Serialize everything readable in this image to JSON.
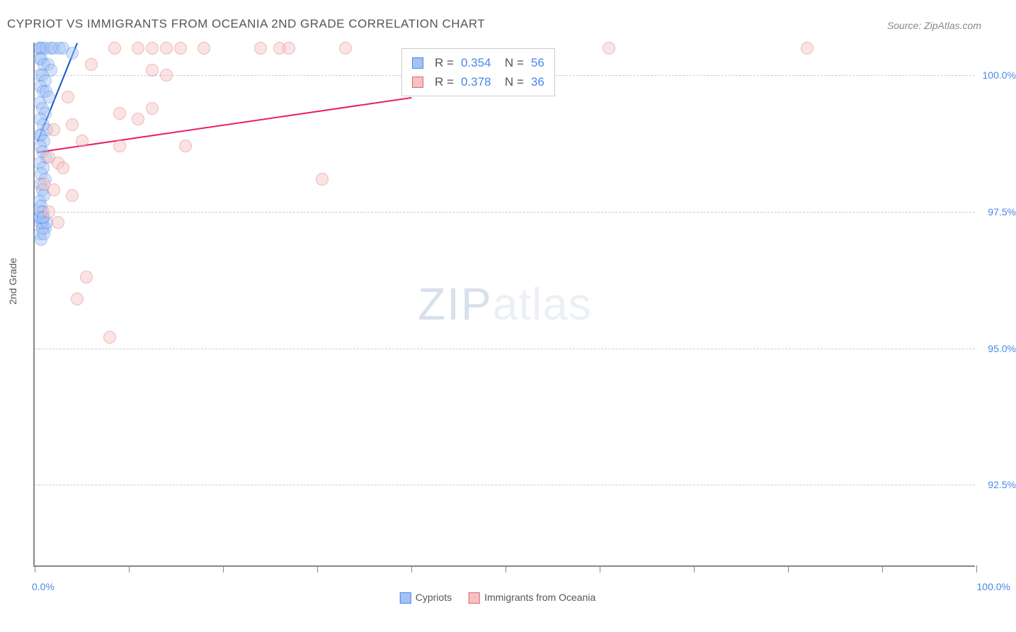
{
  "title": "CYPRIOT VS IMMIGRANTS FROM OCEANIA 2ND GRADE CORRELATION CHART",
  "source_label": "Source: ZipAtlas.com",
  "ylabel": "2nd Grade",
  "watermark": {
    "part1": "ZIP",
    "part2": "atlas"
  },
  "chart": {
    "type": "scatter",
    "background_color": "#ffffff",
    "grid_color": "#cccccc",
    "axis_color": "#888888",
    "xlim": [
      0,
      100
    ],
    "ylim": [
      91.0,
      100.6
    ],
    "xtick_positions": [
      0,
      10,
      20,
      30,
      40,
      50,
      60,
      70,
      80,
      90,
      100
    ],
    "xtick_labels_shown": {
      "0": "0.0%",
      "100": "100.0%"
    },
    "ytick_positions": [
      92.5,
      95.0,
      97.5,
      100.0
    ],
    "ytick_labels": [
      "92.5%",
      "95.0%",
      "97.5%",
      "100.0%"
    ],
    "title_fontsize": 17,
    "label_fontsize": 14,
    "tick_label_color": "#4a86e8",
    "point_radius": 9,
    "point_opacity": 0.45,
    "series": [
      {
        "name": "Cypriots",
        "fill_color": "#a4c2f4",
        "stroke_color": "#4a86e8",
        "R": "0.354",
        "N": "56",
        "trendline": {
          "x1": 0.3,
          "y1": 98.8,
          "x2": 4.5,
          "y2": 100.6,
          "color": "#1155cc",
          "width": 2
        },
        "points": [
          [
            0.5,
            100.5
          ],
          [
            0.6,
            100.5
          ],
          [
            0.8,
            100.5
          ],
          [
            1.2,
            100.5
          ],
          [
            1.7,
            100.5
          ],
          [
            2.0,
            100.5
          ],
          [
            2.6,
            100.5
          ],
          [
            3.0,
            100.5
          ],
          [
            4.0,
            100.4
          ],
          [
            0.5,
            100.3
          ],
          [
            0.7,
            100.3
          ],
          [
            1.0,
            100.2
          ],
          [
            1.4,
            100.2
          ],
          [
            1.7,
            100.1
          ],
          [
            0.5,
            100.0
          ],
          [
            0.8,
            100.0
          ],
          [
            1.1,
            99.9
          ],
          [
            0.6,
            99.8
          ],
          [
            0.9,
            99.7
          ],
          [
            1.2,
            99.7
          ],
          [
            1.5,
            99.6
          ],
          [
            0.5,
            99.5
          ],
          [
            0.8,
            99.4
          ],
          [
            1.1,
            99.3
          ],
          [
            0.6,
            99.2
          ],
          [
            0.9,
            99.1
          ],
          [
            1.3,
            99.0
          ],
          [
            0.5,
            98.9
          ],
          [
            0.7,
            98.9
          ],
          [
            1.0,
            98.8
          ],
          [
            0.6,
            98.7
          ],
          [
            0.8,
            98.6
          ],
          [
            1.2,
            98.5
          ],
          [
            0.5,
            98.4
          ],
          [
            0.9,
            98.3
          ],
          [
            0.7,
            98.2
          ],
          [
            1.1,
            98.1
          ],
          [
            0.6,
            98.0
          ],
          [
            0.8,
            97.9
          ],
          [
            1.0,
            97.8
          ],
          [
            0.5,
            97.7
          ],
          [
            0.7,
            97.6
          ],
          [
            0.9,
            97.5
          ],
          [
            0.6,
            97.4
          ],
          [
            0.8,
            97.3
          ],
          [
            1.1,
            97.2
          ],
          [
            0.5,
            97.1
          ],
          [
            0.7,
            97.0
          ],
          [
            0.9,
            97.4
          ],
          [
            0.6,
            97.3
          ],
          [
            0.8,
            97.2
          ],
          [
            1.0,
            97.1
          ],
          [
            0.5,
            97.4
          ],
          [
            1.3,
            97.3
          ],
          [
            0.7,
            97.5
          ],
          [
            0.9,
            97.4
          ]
        ]
      },
      {
        "name": "Immigrants from Oceania",
        "fill_color": "#f4c2c2",
        "stroke_color": "#e06666",
        "R": "0.378",
        "N": "36",
        "trendline": {
          "x1": 0.3,
          "y1": 98.6,
          "x2": 40.0,
          "y2": 99.6,
          "color": "#e91e63",
          "width": 2
        },
        "points": [
          [
            8.5,
            100.5
          ],
          [
            11.0,
            100.5
          ],
          [
            12.5,
            100.5
          ],
          [
            14.0,
            100.5
          ],
          [
            15.5,
            100.5
          ],
          [
            18.0,
            100.5
          ],
          [
            24.0,
            100.5
          ],
          [
            26.0,
            100.5
          ],
          [
            27.0,
            100.5
          ],
          [
            33.0,
            100.5
          ],
          [
            61.0,
            100.5
          ],
          [
            82.0,
            100.5
          ],
          [
            6.0,
            100.2
          ],
          [
            12.5,
            100.1
          ],
          [
            14.0,
            100.0
          ],
          [
            3.5,
            99.6
          ],
          [
            9.0,
            99.3
          ],
          [
            11.0,
            99.2
          ],
          [
            12.5,
            99.4
          ],
          [
            2.0,
            99.0
          ],
          [
            4.0,
            99.1
          ],
          [
            5.0,
            98.8
          ],
          [
            9.0,
            98.7
          ],
          [
            16.0,
            98.7
          ],
          [
            1.5,
            98.5
          ],
          [
            2.5,
            98.4
          ],
          [
            3.0,
            98.3
          ],
          [
            1.0,
            98.0
          ],
          [
            2.0,
            97.9
          ],
          [
            4.0,
            97.8
          ],
          [
            30.5,
            98.1
          ],
          [
            1.5,
            97.5
          ],
          [
            2.5,
            97.3
          ],
          [
            5.5,
            96.3
          ],
          [
            4.5,
            95.9
          ],
          [
            8.0,
            95.2
          ]
        ]
      }
    ]
  },
  "bottom_legend": [
    {
      "label": "Cypriots",
      "fill": "#a4c2f4",
      "stroke": "#4a86e8"
    },
    {
      "label": "Immigrants from Oceania",
      "fill": "#f4c2c2",
      "stroke": "#e06666"
    }
  ]
}
